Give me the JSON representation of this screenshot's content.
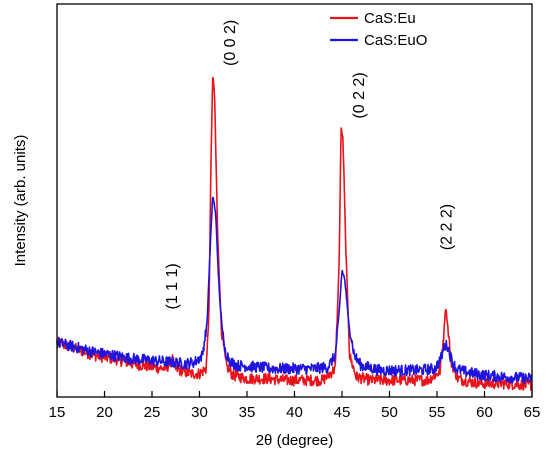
{
  "chart_data": {
    "type": "line",
    "xlabel": "2θ (degree)",
    "ylabel": "Intensity (arb. units)",
    "xlim": [
      15,
      65
    ],
    "xticks": [
      15,
      20,
      25,
      30,
      35,
      40,
      45,
      50,
      55,
      60,
      65
    ],
    "ylim": [
      0,
      100
    ],
    "y_ticks_labeled": false,
    "grid": false,
    "legend_position": "top-right",
    "series": [
      {
        "name": "CaS:Eu",
        "color": "#e8131b",
        "x": [
          15,
          17,
          19,
          21,
          23,
          25,
          26.5,
          26.9,
          27.1,
          27.4,
          28,
          29,
          30,
          30.7,
          31.0,
          31.2,
          31.4,
          31.6,
          31.9,
          32.3,
          32.8,
          33.5,
          35,
          37,
          39,
          41,
          43,
          44.3,
          44.7,
          44.9,
          45.1,
          45.4,
          45.8,
          46.5,
          48,
          50,
          52,
          54,
          55.3,
          55.7,
          55.9,
          56.1,
          56.5,
          57.2,
          58.5,
          60,
          62,
          65
        ],
        "y": [
          16,
          14,
          12,
          11,
          9.5,
          8.5,
          8,
          10,
          11.5,
          8,
          7.5,
          6.5,
          6.5,
          8,
          25,
          70,
          98,
          90,
          50,
          20,
          9,
          6,
          5,
          5,
          4.5,
          4.5,
          4.5,
          8,
          40,
          81,
          78,
          45,
          12,
          5.5,
          4.5,
          4.5,
          4.5,
          4.5,
          7,
          18,
          27,
          22,
          10,
          5,
          4,
          3.5,
          3.5,
          3
        ]
      },
      {
        "name": "CaS:EuO",
        "color": "#1f14dc",
        "x": [
          15,
          17,
          19,
          21,
          23,
          25,
          27,
          28.5,
          29.5,
          30.3,
          30.8,
          31.1,
          31.4,
          31.7,
          32.1,
          32.6,
          33.3,
          34,
          36,
          38,
          40,
          42,
          43.5,
          44.3,
          44.7,
          45.0,
          45.3,
          45.7,
          46.3,
          47,
          49,
          51,
          53,
          54.8,
          55.4,
          55.8,
          56.1,
          56.5,
          57,
          58,
          60,
          62,
          65
        ],
        "y": [
          16,
          14.5,
          13,
          12,
          11,
          10.5,
          10,
          9.5,
          10,
          12,
          22,
          43,
          61,
          55,
          30,
          14,
          10,
          9,
          8.5,
          8,
          8,
          8,
          8.5,
          12,
          25,
          38,
          35,
          22,
          12,
          9,
          7.5,
          7.5,
          7.5,
          8,
          11,
          15,
          15,
          11,
          8,
          7,
          6,
          5.5,
          5
        ]
      }
    ],
    "annotations": [
      {
        "text": "(1 1 1)",
        "x": 27.1,
        "y": 26
      },
      {
        "text": "(0 0 2)",
        "x": 33.2,
        "y": 100
      },
      {
        "text": "(0 2 2)",
        "x": 46.8,
        "y": 84
      },
      {
        "text": "(2 2 2)",
        "x": 56.0,
        "y": 44
      }
    ]
  }
}
